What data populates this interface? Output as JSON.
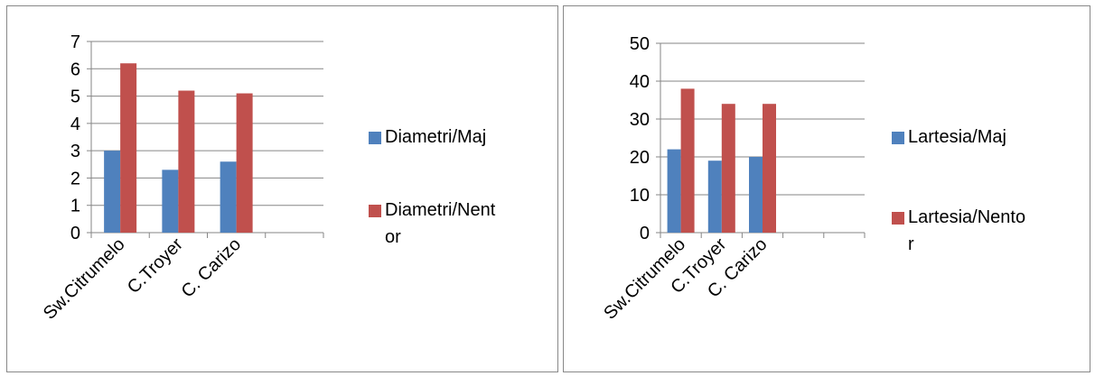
{
  "chart_data": [
    {
      "type": "bar",
      "title": "",
      "xlabel": "",
      "ylabel": "",
      "categories": [
        "Sw.Citrumelo",
        "C.Troyer",
        "C. Carizo"
      ],
      "series": [
        {
          "name": "Diametri/Maj",
          "color": "#4f81bd",
          "values": [
            3.0,
            2.3,
            2.6
          ]
        },
        {
          "name": "Diametri/Nentor",
          "color": "#c0504d",
          "values": [
            6.2,
            5.2,
            5.1
          ]
        }
      ],
      "ylim": [
        0,
        7
      ],
      "yticks": [
        "0",
        "1",
        "2",
        "3",
        "4",
        "5",
        "6",
        "7"
      ],
      "grid": true,
      "legend": "right"
    },
    {
      "type": "bar",
      "title": "",
      "xlabel": "",
      "ylabel": "",
      "categories": [
        "Sw.Citrumelo",
        "C.Troyer",
        "C. Carizo"
      ],
      "series": [
        {
          "name": "Lartesia/Maj",
          "color": "#4f81bd",
          "values": [
            22,
            19,
            20
          ]
        },
        {
          "name": "Lartesia/Nentor",
          "color": "#c0504d",
          "values": [
            38,
            34,
            34
          ]
        }
      ],
      "ylim": [
        0,
        50
      ],
      "yticks": [
        "0",
        "10",
        "20",
        "30",
        "40",
        "50"
      ],
      "grid": true,
      "legend": "right"
    }
  ]
}
